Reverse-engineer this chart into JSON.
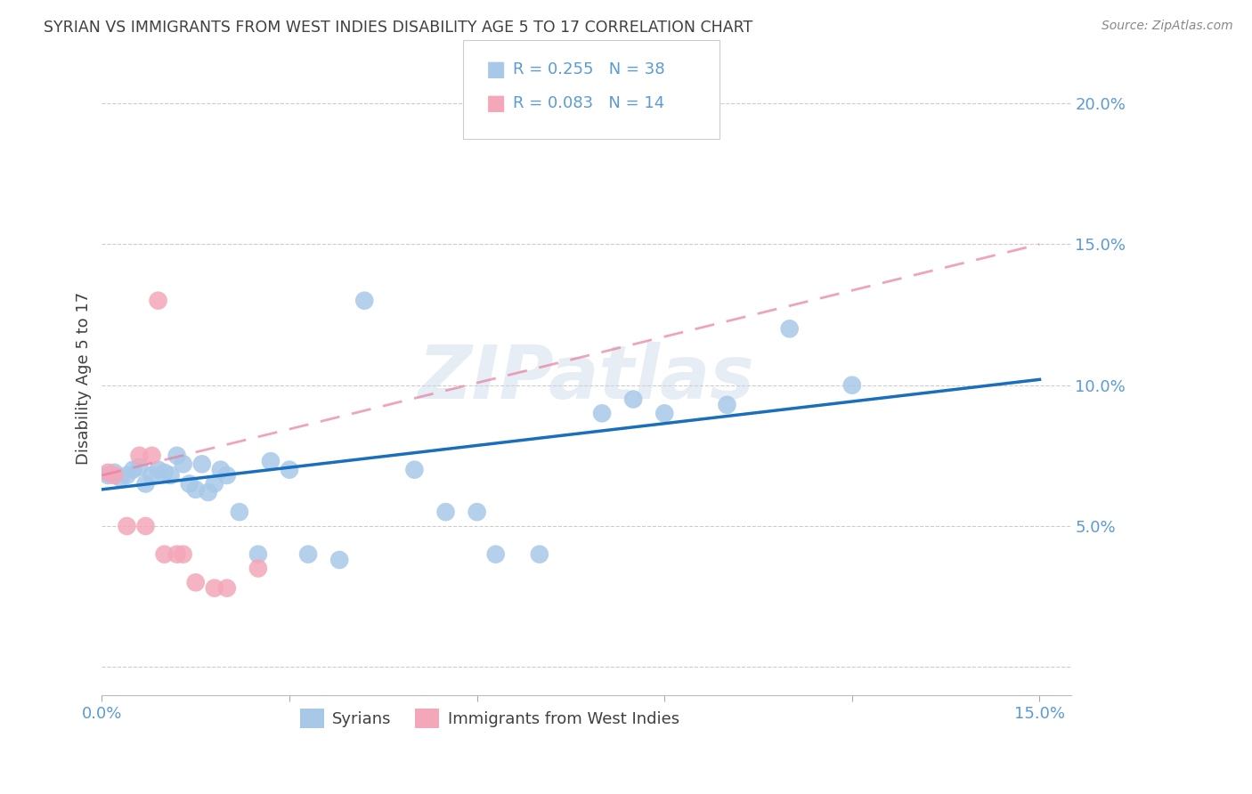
{
  "title": "SYRIAN VS IMMIGRANTS FROM WEST INDIES DISABILITY AGE 5 TO 17 CORRELATION CHART",
  "source": "Source: ZipAtlas.com",
  "ylabel": "Disability Age 5 to 17",
  "xlim": [
    0.0,
    0.155
  ],
  "ylim": [
    -0.01,
    0.215
  ],
  "axis_color": "#5b9bd5",
  "title_color": "#404040",
  "watermark": "ZIPatlas",
  "syrians_R": 0.255,
  "syrians_N": 38,
  "west_indies_R": 0.083,
  "west_indies_N": 14,
  "syrians_color": "#a8c8e8",
  "west_indies_color": "#f4a7b9",
  "line_blue": "#1a6fbd",
  "line_pink": "#e87fa0",
  "syrians_x": [
    0.001,
    0.002,
    0.003,
    0.004,
    0.005,
    0.006,
    0.007,
    0.008,
    0.009,
    0.01,
    0.011,
    0.012,
    0.013,
    0.014,
    0.015,
    0.016,
    0.017,
    0.018,
    0.019,
    0.02,
    0.022,
    0.025,
    0.027,
    0.03,
    0.033,
    0.038,
    0.042,
    0.05,
    0.055,
    0.06,
    0.063,
    0.07,
    0.08,
    0.085,
    0.09,
    0.1,
    0.11,
    0.12
  ],
  "syrians_y": [
    0.068,
    0.069,
    0.067,
    0.068,
    0.07,
    0.071,
    0.065,
    0.068,
    0.07,
    0.069,
    0.068,
    0.075,
    0.072,
    0.065,
    0.063,
    0.072,
    0.062,
    0.065,
    0.07,
    0.068,
    0.055,
    0.04,
    0.073,
    0.07,
    0.04,
    0.038,
    0.13,
    0.07,
    0.055,
    0.055,
    0.04,
    0.04,
    0.09,
    0.095,
    0.09,
    0.093,
    0.12,
    0.1
  ],
  "west_indies_x": [
    0.001,
    0.002,
    0.004,
    0.006,
    0.007,
    0.008,
    0.009,
    0.01,
    0.012,
    0.013,
    0.015,
    0.018,
    0.02,
    0.025
  ],
  "west_indies_y": [
    0.069,
    0.068,
    0.05,
    0.075,
    0.05,
    0.075,
    0.13,
    0.04,
    0.04,
    0.04,
    0.03,
    0.028,
    0.028,
    0.035
  ],
  "blue_line_x": [
    0.0,
    0.15
  ],
  "blue_line_y_start": 0.063,
  "blue_line_y_end": 0.102,
  "pink_line_x": [
    0.0,
    0.15
  ],
  "pink_line_y_start": 0.068,
  "pink_line_y_end": 0.15
}
